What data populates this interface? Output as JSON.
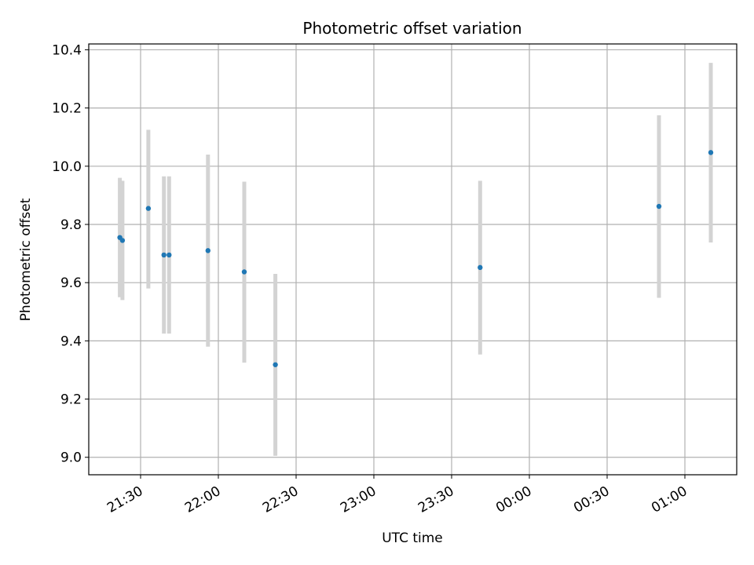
{
  "chart_data": {
    "type": "scatter",
    "title": "Photometric offset variation",
    "xlabel": "UTC time",
    "ylabel": "Photometric offset",
    "grid": true,
    "x_ticks": [
      "21:30",
      "22:00",
      "22:30",
      "23:00",
      "23:30",
      "00:00",
      "00:30",
      "01:00"
    ],
    "y_ticks": [
      "9.0",
      "9.2",
      "9.4",
      "9.6",
      "9.8",
      "10.0",
      "10.2",
      "10.4"
    ],
    "ylim": [
      8.94,
      10.42
    ],
    "xlim": [
      "21:10",
      "01:20"
    ],
    "marker_color": "#1f77b4",
    "errorbar_color": "#d3d3d3",
    "points": [
      {
        "time": "21:22",
        "value": 9.755,
        "low": 9.55,
        "high": 9.96
      },
      {
        "time": "21:23",
        "value": 9.745,
        "low": 9.54,
        "high": 9.95
      },
      {
        "time": "21:33",
        "value": 9.855,
        "low": 9.58,
        "high": 10.125
      },
      {
        "time": "21:39",
        "value": 9.695,
        "low": 9.425,
        "high": 9.965
      },
      {
        "time": "21:41",
        "value": 9.695,
        "low": 9.425,
        "high": 9.965
      },
      {
        "time": "21:56",
        "value": 9.71,
        "low": 9.38,
        "high": 10.04
      },
      {
        "time": "22:10",
        "value": 9.637,
        "low": 9.325,
        "high": 9.947
      },
      {
        "time": "22:22",
        "value": 9.318,
        "low": 9.005,
        "high": 9.63
      },
      {
        "time": "23:41",
        "value": 9.652,
        "low": 9.353,
        "high": 9.95
      },
      {
        "time": "00:50",
        "value": 9.862,
        "low": 9.548,
        "high": 10.175
      },
      {
        "time": "01:10",
        "value": 10.047,
        "low": 9.738,
        "high": 10.355
      }
    ]
  }
}
